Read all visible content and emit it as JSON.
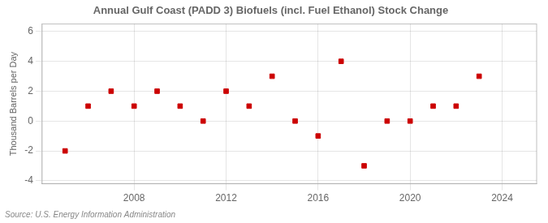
{
  "chart_data": {
    "type": "scatter",
    "title": "Annual Gulf Coast (PADD 3) Biofuels (incl. Fuel Ethanol) Stock Change",
    "ylabel": "Thousand Barrels per Day",
    "annotations": [
      "Source: U.S. Energy Information Administration"
    ],
    "x": [
      2005,
      2006,
      2007,
      2008,
      2009,
      2010,
      2011,
      2012,
      2013,
      2014,
      2015,
      2016,
      2017,
      2018,
      2019,
      2020,
      2021,
      2022,
      2023
    ],
    "values": [
      -2,
      1,
      2,
      1,
      2,
      1,
      0,
      2,
      1,
      3,
      0,
      -1,
      4,
      -3,
      0,
      0,
      1,
      1,
      3
    ],
    "color": "#cc0000",
    "marker": "square",
    "xlim": [
      2004.0,
      2025.5
    ],
    "xticks": [
      2008,
      2012,
      2016,
      2020,
      2024
    ],
    "ylim": [
      -4.2,
      6.5
    ],
    "yticks": [
      -4,
      -2,
      0,
      2,
      4,
      6
    ],
    "grid": true
  }
}
